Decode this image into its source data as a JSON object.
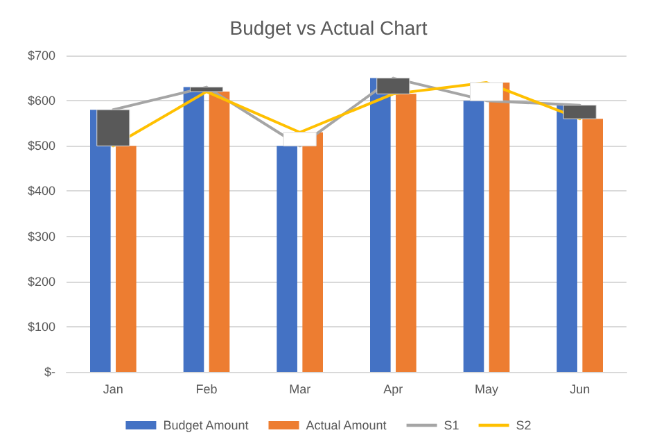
{
  "chart_data": {
    "type": "bar",
    "title": "Budget vs Actual Chart",
    "categories": [
      "Jan",
      "Feb",
      "Mar",
      "Apr",
      "May",
      "Jun"
    ],
    "series": [
      {
        "name": "Budget Amount",
        "color": "#4472c4",
        "values": [
          580,
          630,
          500,
          650,
          600,
          590
        ]
      },
      {
        "name": "Actual Amount",
        "color": "#ed7d31",
        "values": [
          500,
          620,
          530,
          615,
          640,
          560
        ]
      },
      {
        "name": "S1",
        "type": "line",
        "color": "#a5a5a5",
        "values": [
          580,
          630,
          500,
          650,
          600,
          590
        ]
      },
      {
        "name": "S2",
        "type": "line",
        "color": "#ffc000",
        "values": [
          500,
          620,
          530,
          615,
          640,
          560
        ]
      },
      {
        "type": "bar",
        "base": [
          500,
          620,
          500,
          615,
          600,
          560
        ],
        "values": [
          80,
          10,
          30,
          35,
          40,
          30
        ],
        "colors": [
          "#595959",
          "#595959",
          "#ffffff",
          "#595959",
          "#ffffff",
          "#595959"
        ]
      }
    ],
    "ylim": [
      0,
      700
    ],
    "yticks": [
      {
        "value": 0,
        "label": "$-"
      },
      {
        "value": 100,
        "label": "$100"
      },
      {
        "value": 200,
        "label": "$200"
      },
      {
        "value": 300,
        "label": "$300"
      },
      {
        "value": 400,
        "label": "$400"
      },
      {
        "value": 500,
        "label": "$500"
      },
      {
        "value": 600,
        "label": "$600"
      },
      {
        "value": 700,
        "label": "$700"
      }
    ],
    "grid": "y",
    "legend": "bottom",
    "marker": "none",
    "line_style": "solid"
  }
}
